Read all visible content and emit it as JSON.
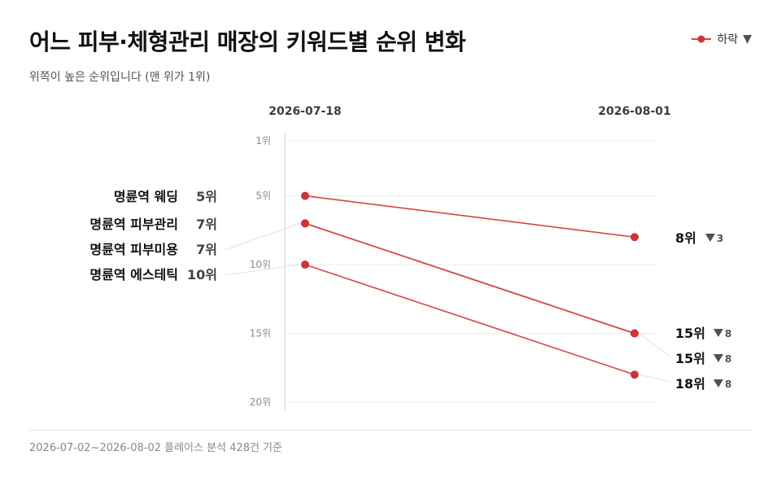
{
  "title": "어느 피부·체형관리 매장의 키워드별 순위 변화",
  "subtitle": "위쪽이 높은 순위입니다 (맨 위가 1위)",
  "legend": {
    "label": "하락",
    "symbol": "▼"
  },
  "footer": "2026-07-02~2026-08-02 플레이스 분석 428건 기준",
  "colors": {
    "line": "#d64545",
    "point": "#cf3434",
    "grid": "#ececec",
    "axis": "#cfcfcf",
    "arrow": "#4a564a"
  },
  "chart_data": {
    "type": "line",
    "x": [
      "2026-07-18",
      "2026-08-01"
    ],
    "ylim": [
      1,
      20
    ],
    "y_reversed": true,
    "yticks": [
      "1위",
      "5위",
      "10위",
      "15위",
      "20위"
    ],
    "ytick_values": [
      1,
      5,
      10,
      15,
      20
    ],
    "series": [
      {
        "name": "명륜역 웨딩",
        "values": [
          5,
          8
        ],
        "start_label": "5위",
        "end_label": "8위",
        "change": "3"
      },
      {
        "name": "명륜역 피부관리",
        "values": [
          7,
          15
        ],
        "start_label": "7위",
        "end_label": "15위",
        "change": "8"
      },
      {
        "name": "명륜역 피부미용",
        "values": [
          7,
          15
        ],
        "start_label": "7위",
        "end_label": "15위",
        "change": "8"
      },
      {
        "name": "명륜역 에스테틱",
        "values": [
          10,
          18
        ],
        "start_label": "10위",
        "end_label": "18위",
        "change": "8"
      }
    ]
  }
}
